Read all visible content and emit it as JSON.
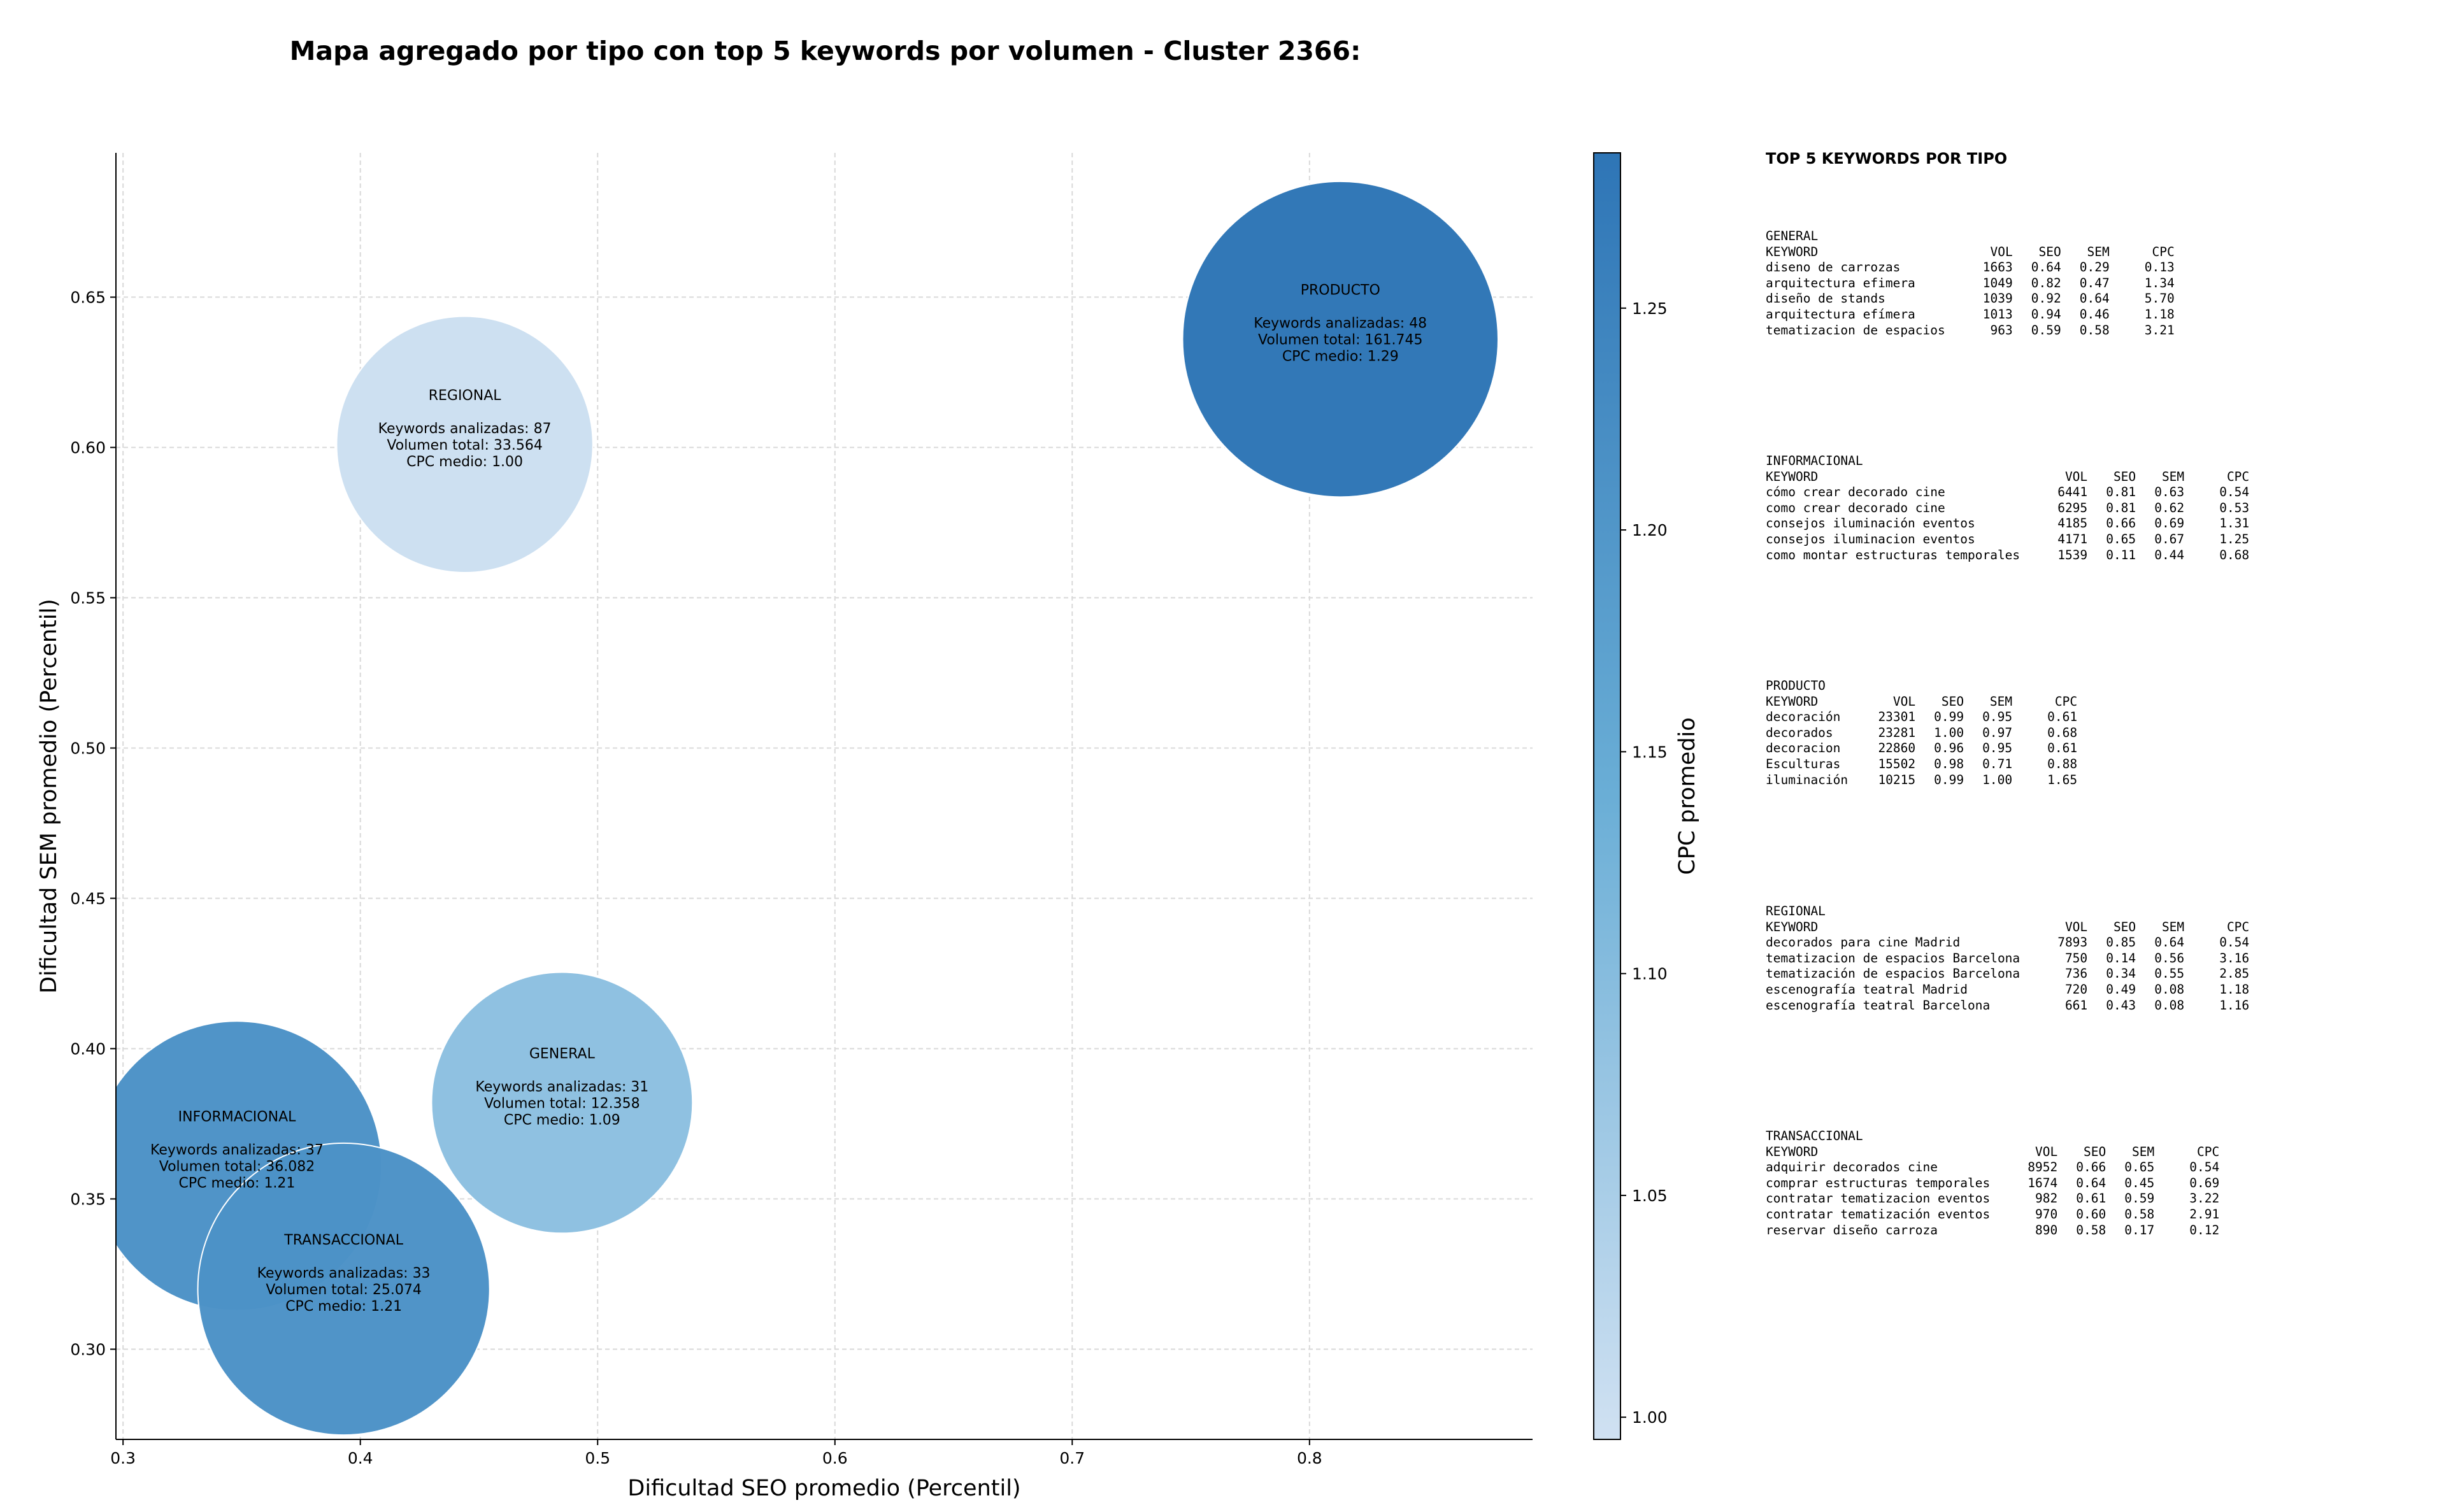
{
  "chart_data": {
    "type": "scatter",
    "title": "Mapa agregado por tipo con top 5 keywords por volumen - Cluster 2366:",
    "xlabel": "Dificultad SEO promedio (Percentil)",
    "ylabel": "Dificultad SEM promedio (Percentil)",
    "xlim": [
      0.297,
      0.894
    ],
    "ylim": [
      0.27,
      0.698
    ],
    "xticks": [
      "0.3",
      "0.4",
      "0.5",
      "0.6",
      "0.7",
      "0.8"
    ],
    "yticks": [
      "0.30",
      "0.35",
      "0.40",
      "0.45",
      "0.50",
      "0.55",
      "0.60",
      "0.65"
    ],
    "grid": true,
    "colorbar": {
      "label": "CPC promedio",
      "range": [
        0.995,
        1.285
      ],
      "ticks": [
        "1.00",
        "1.05",
        "1.10",
        "1.15",
        "1.20",
        "1.25"
      ],
      "color_low": "#d0e1f2",
      "color_mid": "#6aaed6",
      "color_high": "#2e75b6"
    },
    "points": [
      {
        "name": "PRODUCTO",
        "x": 0.813,
        "y": 0.636,
        "cpc": 1.29,
        "radius": 0.0665,
        "lines": [
          "PRODUCTO",
          "",
          "Keywords analizadas: 48",
          "Volumen total: 161.745",
          "CPC medio: 1.29"
        ]
      },
      {
        "name": "REGIONAL",
        "x": 0.444,
        "y": 0.601,
        "cpc": 1.0,
        "radius": 0.054,
        "lines": [
          "REGIONAL",
          "",
          "Keywords analizadas: 87",
          "Volumen total: 33.564",
          "CPC medio: 1.00"
        ]
      },
      {
        "name": "GENERAL",
        "x": 0.485,
        "y": 0.382,
        "cpc": 1.09,
        "radius": 0.055,
        "lines": [
          "GENERAL",
          "",
          "Keywords analizadas: 31",
          "Volumen total: 12.358",
          "CPC medio: 1.09"
        ]
      },
      {
        "name": "INFORMACIONAL",
        "x": 0.348,
        "y": 0.361,
        "cpc": 1.21,
        "radius": 0.061,
        "lines": [
          "INFORMACIONAL",
          "",
          "Keywords analizadas: 37",
          "Volumen total: 36.082",
          "CPC medio: 1.21"
        ]
      },
      {
        "name": "TRANSACCIONAL",
        "x": 0.393,
        "y": 0.32,
        "cpc": 1.21,
        "radius": 0.0615,
        "lines": [
          "TRANSACCIONAL",
          "",
          "Keywords analizadas: 33",
          "Volumen total: 25.074",
          "CPC medio: 1.21"
        ]
      }
    ]
  },
  "side_panel": {
    "title": "TOP 5 KEYWORDS POR TIPO",
    "header": {
      "keyword": "KEYWORD",
      "vol": "VOL",
      "seo": "SEO",
      "sem": "SEM",
      "cpc": "CPC"
    },
    "groups": [
      {
        "type": "GENERAL",
        "rows": [
          [
            "diseno de carrozas",
            "1663",
            "0.64",
            "0.29",
            "0.13"
          ],
          [
            "arquitectura efimera",
            "1049",
            "0.82",
            "0.47",
            "1.34"
          ],
          [
            "diseño de stands",
            "1039",
            "0.92",
            "0.64",
            "5.70"
          ],
          [
            "arquitectura efímera",
            "1013",
            "0.94",
            "0.46",
            "1.18"
          ],
          [
            "tematizacion de espacios",
            "963",
            "0.59",
            "0.58",
            "3.21"
          ]
        ]
      },
      {
        "type": "INFORMACIONAL",
        "rows": [
          [
            "cómo crear decorado cine",
            "6441",
            "0.81",
            "0.63",
            "0.54"
          ],
          [
            "como crear decorado cine",
            "6295",
            "0.81",
            "0.62",
            "0.53"
          ],
          [
            "consejos iluminación eventos",
            "4185",
            "0.66",
            "0.69",
            "1.31"
          ],
          [
            "consejos iluminacion eventos",
            "4171",
            "0.65",
            "0.67",
            "1.25"
          ],
          [
            "como montar estructuras temporales",
            "1539",
            "0.11",
            "0.44",
            "0.68"
          ]
        ]
      },
      {
        "type": "PRODUCTO",
        "rows": [
          [
            "decoración",
            "23301",
            "0.99",
            "0.95",
            "0.61"
          ],
          [
            "decorados",
            "23281",
            "1.00",
            "0.97",
            "0.68"
          ],
          [
            "decoracion",
            "22860",
            "0.96",
            "0.95",
            "0.61"
          ],
          [
            "Esculturas",
            "15502",
            "0.98",
            "0.71",
            "0.88"
          ],
          [
            "iluminación",
            "10215",
            "0.99",
            "1.00",
            "1.65"
          ]
        ]
      },
      {
        "type": "REGIONAL",
        "rows": [
          [
            "decorados para cine Madrid",
            "7893",
            "0.85",
            "0.64",
            "0.54"
          ],
          [
            "tematizacion de espacios Barcelona",
            "750",
            "0.14",
            "0.56",
            "3.16"
          ],
          [
            "tematización de espacios Barcelona",
            "736",
            "0.34",
            "0.55",
            "2.85"
          ],
          [
            "escenografía teatral Madrid",
            "720",
            "0.49",
            "0.08",
            "1.18"
          ],
          [
            "escenografía teatral Barcelona",
            "661",
            "0.43",
            "0.08",
            "1.16"
          ]
        ]
      },
      {
        "type": "TRANSACCIONAL",
        "rows": [
          [
            "adquirir decorados cine",
            "8952",
            "0.66",
            "0.65",
            "0.54"
          ],
          [
            "comprar estructuras temporales",
            "1674",
            "0.64",
            "0.45",
            "0.69"
          ],
          [
            "contratar tematizacion eventos",
            "982",
            "0.61",
            "0.59",
            "3.22"
          ],
          [
            "contratar tematización eventos",
            "970",
            "0.60",
            "0.58",
            "2.91"
          ],
          [
            "reservar diseño carroza",
            "890",
            "0.58",
            "0.17",
            "0.12"
          ]
        ]
      }
    ]
  }
}
